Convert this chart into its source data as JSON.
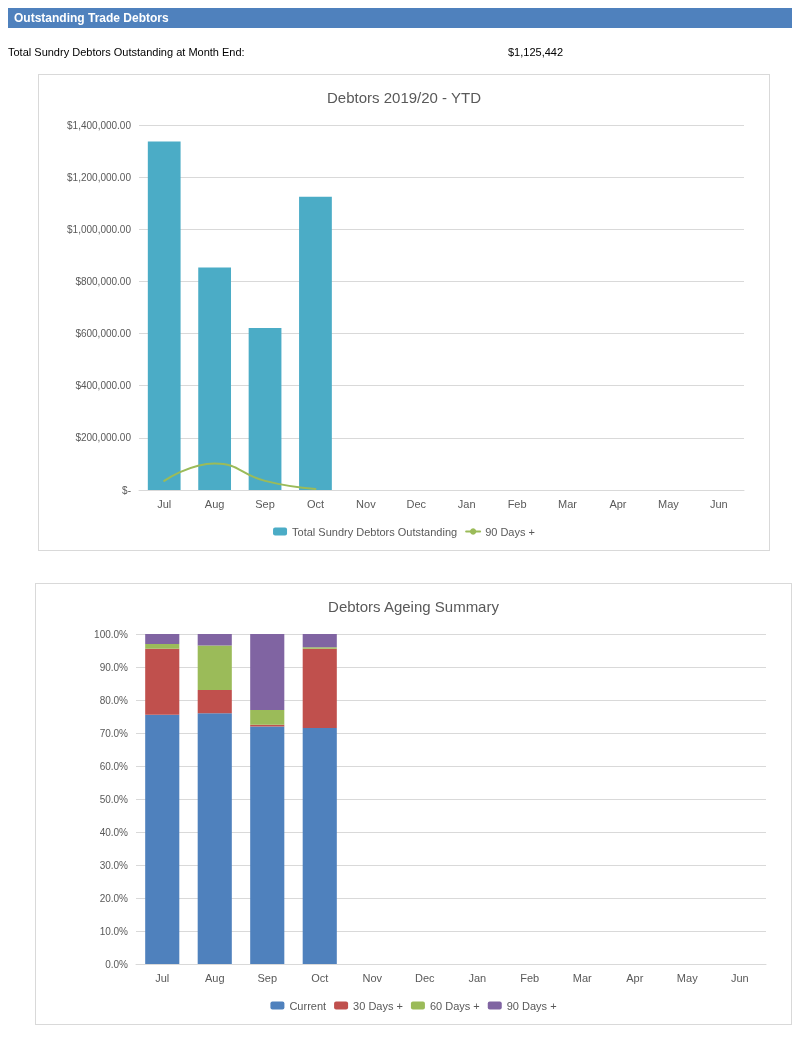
{
  "chart_data": [
    {
      "type": "bar",
      "title": "Debtors 2019/20 - YTD",
      "annotations": [
        "Outstanding Trade Debtors",
        "Total Sundry Debtors Outstanding at Month End:",
        "$1,125,442"
      ],
      "categories": [
        "Jul",
        "Aug",
        "Sep",
        "Oct",
        "Nov",
        "Dec",
        "Jan",
        "Feb",
        "Mar",
        "Apr",
        "May",
        "Jun"
      ],
      "series": [
        {
          "name": "Total Sundry Debtors Outstanding",
          "color": "#4bacc6",
          "values": [
            1337000,
            853000,
            621000,
            1125000,
            null,
            null,
            null,
            null,
            null,
            null,
            null,
            null
          ]
        },
        {
          "name": "90 Days +",
          "type": "line",
          "color": "#9bbb59",
          "values": [
            35000,
            102000,
            35000,
            4000,
            null,
            null,
            null,
            null,
            null,
            null,
            null,
            null
          ]
        }
      ],
      "ylim": [
        0,
        1400000
      ],
      "yticks": [
        {
          "value": 0,
          "label": "$-"
        },
        {
          "value": 200000,
          "label": "$200,000.00"
        },
        {
          "value": 400000,
          "label": "$400,000.00"
        },
        {
          "value": 600000,
          "label": "$600,000.00"
        },
        {
          "value": 800000,
          "label": "$800,000.00"
        },
        {
          "value": 1000000,
          "label": "$1,000,000.00"
        },
        {
          "value": 1200000,
          "label": "$1,200,000.00"
        },
        {
          "value": 1400000,
          "label": "$1,400,000.00"
        }
      ],
      "grid": "y",
      "legend": "bottom",
      "marker": "none"
    },
    {
      "type": "bar",
      "title": "Debtors Ageing Summary",
      "stacked": true,
      "categories": [
        "Jul",
        "Aug",
        "Sep",
        "Oct",
        "Nov",
        "Dec",
        "Jan",
        "Feb",
        "Mar",
        "Apr",
        "May",
        "Jun"
      ],
      "series": [
        {
          "name": "Current",
          "color": "#4f81bd",
          "values": [
            75.5,
            76,
            72,
            71.5,
            null,
            null,
            null,
            null,
            null,
            null,
            null,
            null
          ]
        },
        {
          "name": "30 Days +",
          "color": "#c0504d",
          "values": [
            20,
            7,
            0.5,
            24,
            null,
            null,
            null,
            null,
            null,
            null,
            null,
            null
          ]
        },
        {
          "name": "60 Days +",
          "color": "#9bbb59",
          "values": [
            1.5,
            13.5,
            4.5,
            0.5,
            null,
            null,
            null,
            null,
            null,
            null,
            null,
            null
          ]
        },
        {
          "name": "90 Days +",
          "color": "#8064a2",
          "values": [
            3,
            3.5,
            23,
            4,
            null,
            null,
            null,
            null,
            null,
            null,
            null,
            null
          ]
        }
      ],
      "ylim": [
        0,
        100
      ],
      "yticks": [
        {
          "value": 0,
          "label": "0.0%"
        },
        {
          "value": 10,
          "label": "10.0%"
        },
        {
          "value": 20,
          "label": "20.0%"
        },
        {
          "value": 30,
          "label": "30.0%"
        },
        {
          "value": 40,
          "label": "40.0%"
        },
        {
          "value": 50,
          "label": "50.0%"
        },
        {
          "value": 60,
          "label": "60.0%"
        },
        {
          "value": 70,
          "label": "70.0%"
        },
        {
          "value": 80,
          "label": "80.0%"
        },
        {
          "value": 90,
          "label": "90.0%"
        },
        {
          "value": 100,
          "label": "100.0%"
        }
      ],
      "grid": "y",
      "legend": "bottom"
    }
  ]
}
